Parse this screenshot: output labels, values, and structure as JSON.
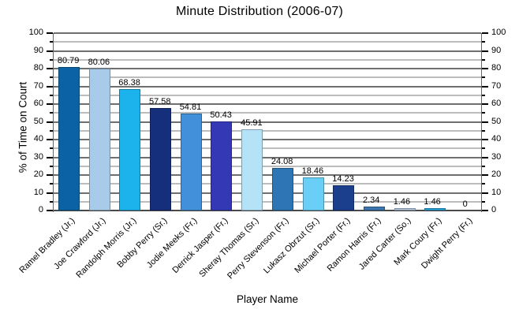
{
  "chart_data": {
    "type": "bar",
    "title": "Minute Distribution (2006-07)",
    "xlabel": "Player Name",
    "ylabel": "% of Time on Court",
    "ylim": [
      0,
      100
    ],
    "ytick_step": 10,
    "minor_tick_step": 5,
    "grid": "major-and-minor-horizontal",
    "legend": "none",
    "dual_y_axis_labels": true,
    "categories": [
      "Ramel Bradley (Jr.)",
      "Joe Crawford (Jr.)",
      "Randolph Morris (Jr.)",
      "Bobby Perry (Sr.)",
      "Jodie Meeks (Fr.)",
      "Derrick Jasper (Fr.)",
      "Sheray Thomas (Sr.)",
      "Perry Stevenson (Fr.)",
      "Lukasz Obrzut (Sr.)",
      "Michael Porter (Fr.)",
      "Ramon Harris (Fr.)",
      "Jared Carter (So.)",
      "Mark Coury (Fr.)",
      "Dwight Perry (Fr.)"
    ],
    "values": [
      80.79,
      80.06,
      68.38,
      57.58,
      54.81,
      50.43,
      45.91,
      24.08,
      18.46,
      14.23,
      2.34,
      1.46,
      1.46,
      0
    ],
    "value_labels": [
      "80.79",
      "80.06",
      "68.38",
      "57.58",
      "54.81",
      "50.43",
      "45.91",
      "24.08",
      "18.46",
      "14.23",
      "2.34",
      "1.46",
      "1.46",
      "0"
    ],
    "bar_colors": [
      "#0b63a5",
      "#a7cbe9",
      "#1cb2ec",
      "#152f7d",
      "#4190d9",
      "#3438b4",
      "#b4e2f7",
      "#2e75b6",
      "#69cff6",
      "#1b3e8d",
      "#3c76ae",
      "#b3c8de",
      "#29a5dc",
      "#cccccc"
    ],
    "grid_colors": {
      "major": "#6f6f6f",
      "minor": "#bcbcbc"
    }
  }
}
